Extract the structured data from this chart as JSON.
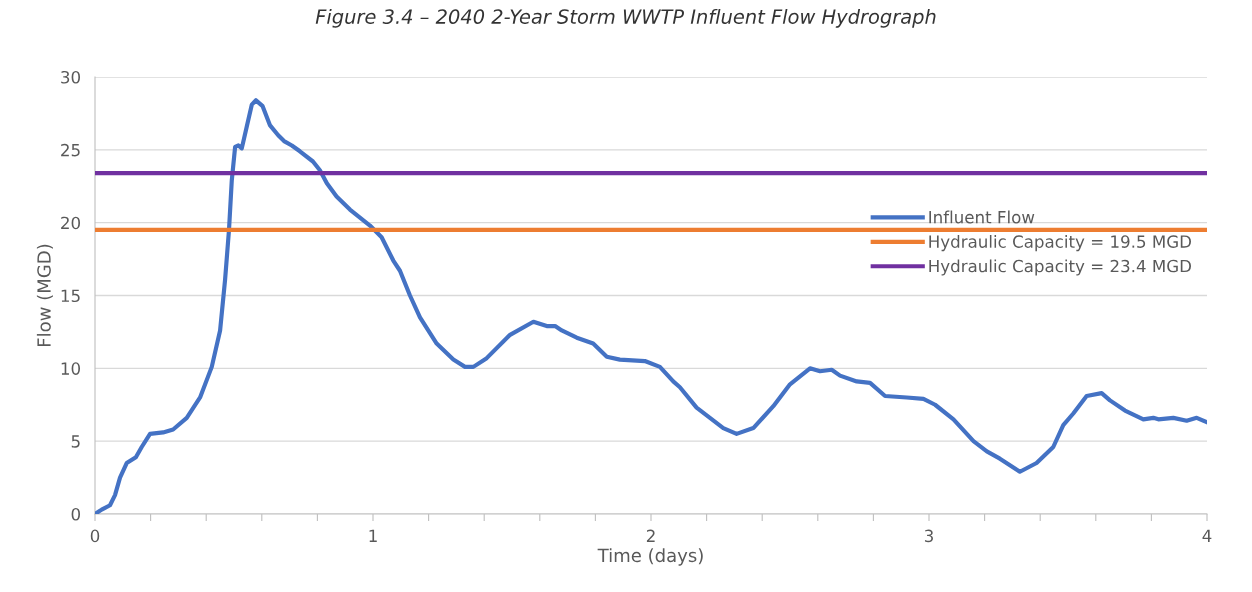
{
  "chart_data": {
    "type": "line",
    "title": "Figure 3.4 – 2040 2-Year Storm WWTP Influent Flow Hydrograph",
    "xlabel": "Time (days)",
    "ylabel": "Flow (MGD)",
    "xlim": [
      0,
      4
    ],
    "ylim": [
      0,
      30
    ],
    "xticks": [
      0,
      {
        "value": 0.2,
        "label": null
      },
      {
        "value": 0.4,
        "label": null
      },
      {
        "value": 0.6,
        "label": null
      },
      {
        "value": 0.8,
        "label": null
      },
      1,
      {
        "value": 1.2,
        "label": null
      },
      {
        "value": 1.4,
        "label": null
      },
      {
        "value": 1.6,
        "label": null
      },
      {
        "value": 1.8,
        "label": null
      },
      2,
      {
        "value": 2.2,
        "label": null
      },
      {
        "value": 2.4,
        "label": null
      },
      {
        "value": 2.6,
        "label": null
      },
      {
        "value": 2.8,
        "label": null
      },
      3,
      {
        "value": 3.2,
        "label": null
      },
      {
        "value": 3.4,
        "label": null
      },
      {
        "value": 3.6,
        "label": null
      },
      {
        "value": 3.8,
        "label": null
      },
      4
    ],
    "yticks": [
      0,
      5,
      10,
      15,
      20,
      25,
      30
    ],
    "grid": "y",
    "legend": "right",
    "marker": "none",
    "line_style": "solid",
    "series": [
      {
        "name": "Influent Flow",
        "color": "#4472c4",
        "x": [
          0,
          0.024,
          0.054,
          0.072,
          0.09,
          0.114,
          0.147,
          0.168,
          0.198,
          0.245,
          0.281,
          0.33,
          0.378,
          0.42,
          0.45,
          0.468,
          0.482,
          0.492,
          0.504,
          0.516,
          0.528,
          0.546,
          0.564,
          0.579,
          0.603,
          0.629,
          0.659,
          0.68,
          0.708,
          0.737,
          0.784,
          0.809,
          0.834,
          0.869,
          0.917,
          0.989,
          1.031,
          1.073,
          1.097,
          1.133,
          1.169,
          1.229,
          1.289,
          1.331,
          1.361,
          1.409,
          1.493,
          1.577,
          1.625,
          1.655,
          1.679,
          1.733,
          1.792,
          1.841,
          1.888,
          1.978,
          2.032,
          2.08,
          2.104,
          2.164,
          2.212,
          2.26,
          2.308,
          2.368,
          2.44,
          2.5,
          2.572,
          2.608,
          2.65,
          2.68,
          2.74,
          2.788,
          2.842,
          2.92,
          2.98,
          3.022,
          3.088,
          3.16,
          3.208,
          3.255,
          3.327,
          3.387,
          3.447,
          3.483,
          3.519,
          3.567,
          3.621,
          3.651,
          3.705,
          3.771,
          3.807,
          3.825,
          3.879,
          3.927,
          3.963,
          4.0
        ],
        "values": [
          0,
          0.3,
          0.6,
          1.3,
          2.5,
          3.5,
          3.9,
          4.6,
          5.5,
          5.6,
          5.8,
          6.6,
          8.0,
          10.1,
          12.6,
          16.1,
          19.5,
          22.9,
          25.2,
          25.3,
          25.1,
          26.6,
          28.1,
          28.4,
          28.0,
          26.7,
          26.0,
          25.6,
          25.3,
          24.9,
          24.2,
          23.6,
          22.7,
          21.8,
          20.9,
          19.8,
          19.0,
          17.4,
          16.7,
          15.0,
          13.5,
          11.7,
          10.6,
          10.1,
          10.1,
          10.7,
          12.3,
          13.2,
          12.9,
          12.9,
          12.6,
          12.1,
          11.7,
          10.8,
          10.6,
          10.5,
          10.1,
          9.1,
          8.7,
          7.3,
          6.6,
          5.9,
          5.5,
          5.9,
          7.4,
          8.9,
          10.0,
          9.8,
          9.9,
          9.5,
          9.1,
          9.0,
          8.1,
          8.0,
          7.9,
          7.5,
          6.5,
          5.0,
          4.3,
          3.8,
          2.9,
          3.5,
          4.6,
          6.1,
          6.9,
          8.1,
          8.3,
          7.8,
          7.1,
          6.5,
          6.6,
          6.5,
          6.6,
          6.4,
          6.6,
          6.3
        ]
      },
      {
        "name": "Hydraulic Capacity = 19.5 MGD",
        "color": "#ed7d31",
        "x": [
          0,
          4
        ],
        "values": [
          19.5,
          19.5
        ]
      },
      {
        "name": "Hydraulic Capacity = 23.4 MGD",
        "color": "#7030a0",
        "x": [
          0,
          4
        ],
        "values": [
          23.4,
          23.4
        ]
      }
    ]
  }
}
